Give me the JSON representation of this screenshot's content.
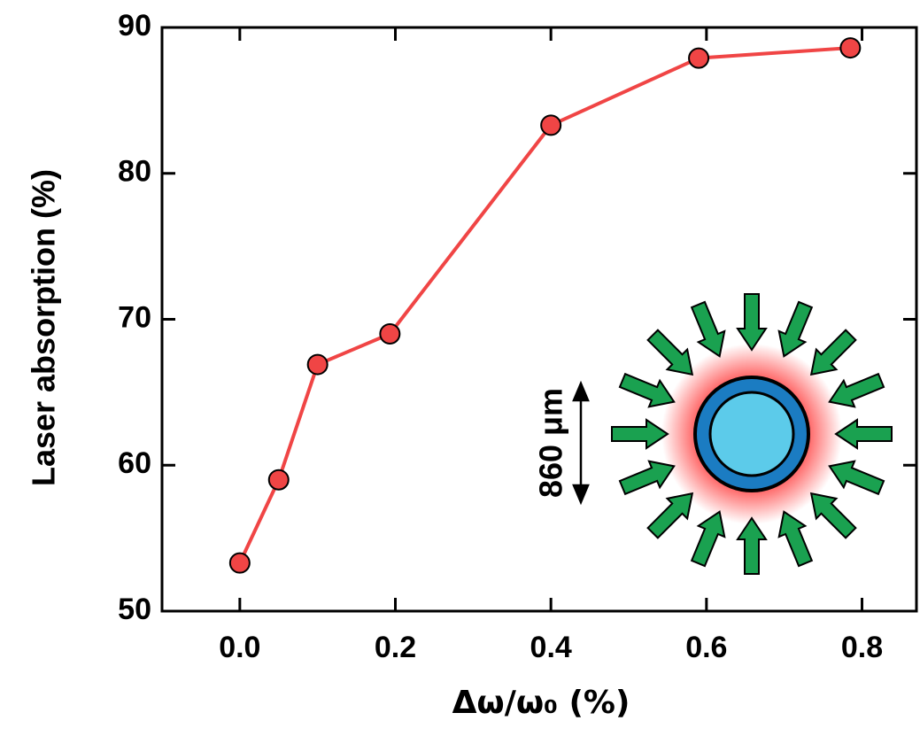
{
  "chart_data": {
    "type": "line",
    "x_label": "Δω/ω₀ (%)",
    "y_label": "Laser absorption (%)",
    "annotation": "860 μm",
    "x": [
      0.0,
      0.05,
      0.1,
      0.193,
      0.4,
      0.59,
      0.785
    ],
    "series": [
      {
        "color": "#f04545",
        "values": [
          53.3,
          59.0,
          66.9,
          69.0,
          83.3,
          87.9,
          88.6
        ]
      }
    ],
    "xlim": [
      -0.1,
      0.87
    ],
    "ylim": [
      50,
      90
    ],
    "xticks": [
      {
        "value": 0,
        "label": "0.0"
      },
      0.2,
      0.4,
      0.6,
      0.8
    ],
    "yticks": [
      50,
      60,
      70,
      80,
      90
    ]
  }
}
